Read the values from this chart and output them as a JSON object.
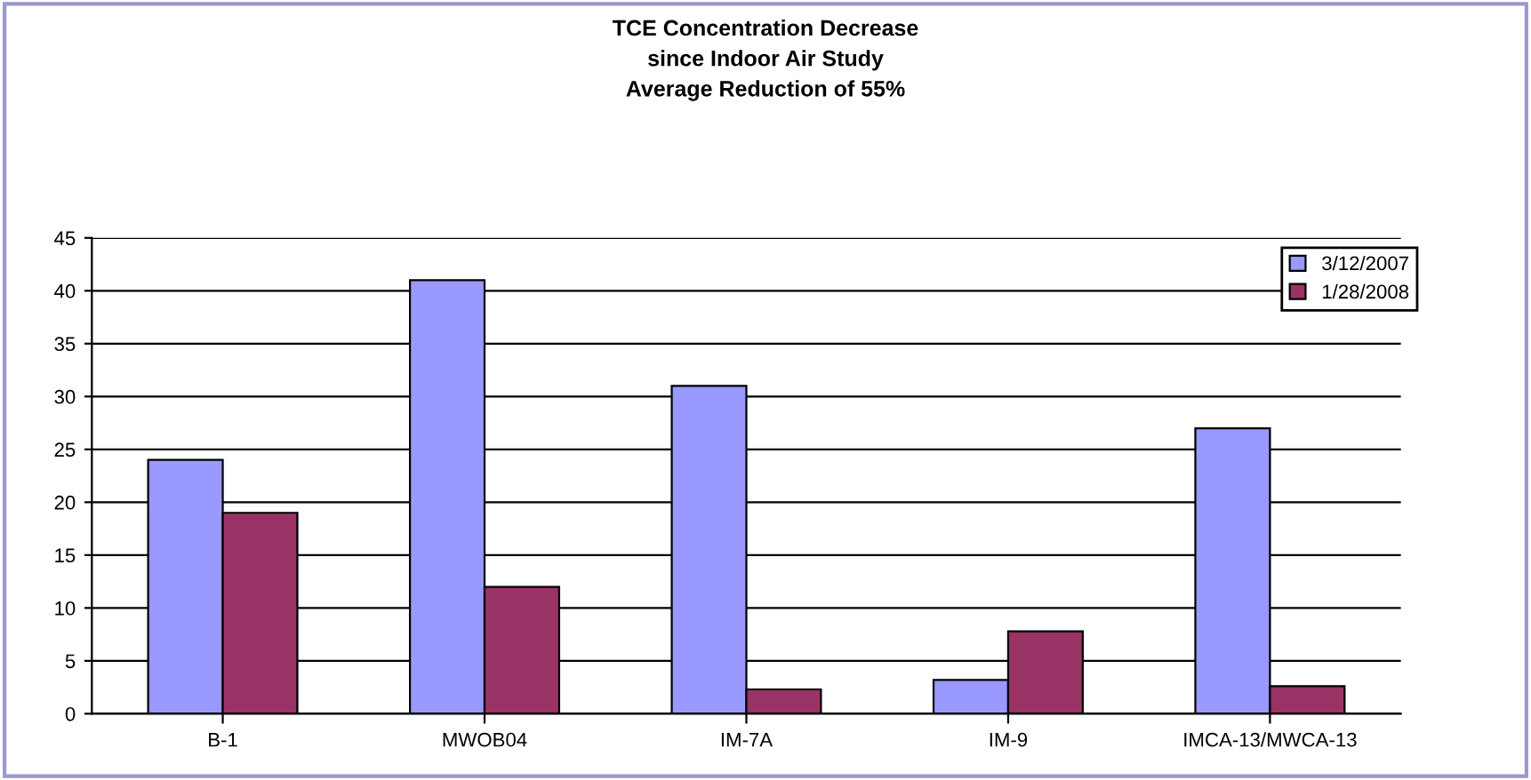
{
  "chart_data": {
    "type": "bar",
    "title": "TCE Concentration Decrease\nsince Indoor Air Study\nAverage Reduction of 55%",
    "categories": [
      "B-1",
      "MWOB04",
      "IM-7A",
      "IM-9",
      "IMCA-13/MWCA-13"
    ],
    "series": [
      {
        "name": "3/12/2007",
        "color": "#9999ff",
        "values": [
          24,
          41,
          31,
          3.2,
          27
        ]
      },
      {
        "name": "1/28/2008",
        "color": "#993366",
        "values": [
          19,
          12,
          2.3,
          7.8,
          2.6
        ]
      }
    ],
    "ylim": [
      0,
      45
    ],
    "yticks": [
      0,
      5,
      10,
      15,
      20,
      25,
      30,
      35,
      40,
      45
    ],
    "grid": "y",
    "legend": "top right"
  }
}
